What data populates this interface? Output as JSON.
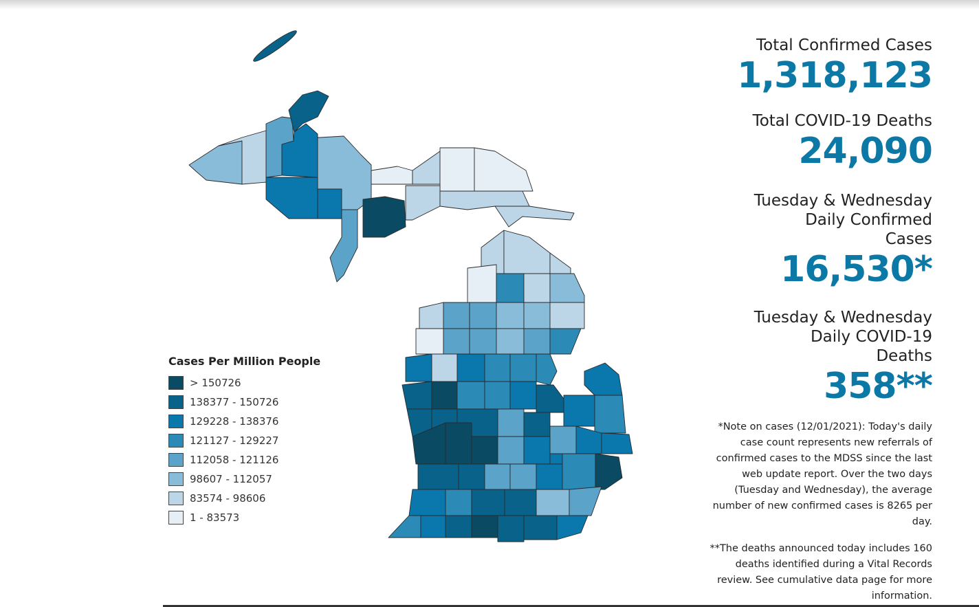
{
  "stats": [
    {
      "label": "Total Confirmed Cases",
      "value": "1,318,123"
    },
    {
      "label": "Total COVID-19 Deaths",
      "value": "24,090"
    },
    {
      "label": "Tuesday & Wednesday Daily Confirmed Cases",
      "value": "16,530*"
    },
    {
      "label": "Tuesday & Wednesday Daily COVID-19 Deaths",
      "value": "358**"
    }
  ],
  "notes": {
    "cases": "*Note on cases (12/01/2021): Today's daily case count represents new referrals of confirmed cases to the MDSS since the last web update report.  Over the two days (Tuesday and Wednesday), the average number of new confirmed cases is 8265 per day.",
    "deaths": "**The deaths announced today includes 160 deaths identified during a Vital Records review. See cumulative data page for more information."
  },
  "legend": {
    "title": "Cases Per Million People",
    "items": [
      {
        "label": "> 150726",
        "color": "#0b4a63"
      },
      {
        "label": "138377 - 150726",
        "color": "#08628a"
      },
      {
        "label": "129228 - 138376",
        "color": "#0a77ad"
      },
      {
        "label": "121127 - 129227",
        "color": "#2b8ab6"
      },
      {
        "label": "112058 - 121126",
        "color": "#5ba3c8"
      },
      {
        "label": "98607 - 112057",
        "color": "#89bcd9"
      },
      {
        "label": "83574 - 98606",
        "color": "#bcd6e8"
      },
      {
        "label": "1 - 83573",
        "color": "#e7eff6"
      }
    ]
  }
}
